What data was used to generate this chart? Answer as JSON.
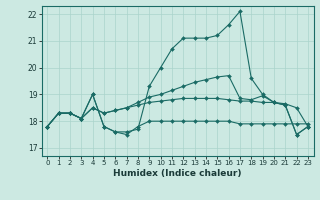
{
  "xlabel": "Humidex (Indice chaleur)",
  "xlim": [
    -0.5,
    23.5
  ],
  "ylim": [
    16.7,
    22.3
  ],
  "yticks": [
    17,
    18,
    19,
    20,
    21,
    22
  ],
  "xticks": [
    0,
    1,
    2,
    3,
    4,
    5,
    6,
    7,
    8,
    9,
    10,
    11,
    12,
    13,
    14,
    15,
    16,
    17,
    18,
    19,
    20,
    21,
    22,
    23
  ],
  "background_color": "#cce9e2",
  "grid_color": "#aad4cc",
  "line_color": "#1a6b65",
  "line1": [
    17.8,
    18.3,
    18.3,
    18.1,
    19.0,
    17.8,
    17.6,
    17.6,
    17.7,
    19.3,
    20.0,
    20.7,
    21.1,
    21.1,
    21.1,
    21.2,
    21.6,
    22.1,
    19.6,
    19.0,
    18.7,
    18.6,
    17.5,
    17.8
  ],
  "line2": [
    17.8,
    18.3,
    18.3,
    18.1,
    19.0,
    17.8,
    17.6,
    17.5,
    17.8,
    18.0,
    18.0,
    18.0,
    18.0,
    18.0,
    18.0,
    18.0,
    18.0,
    17.9,
    17.9,
    17.9,
    17.9,
    17.9,
    17.9,
    17.9
  ],
  "line3": [
    17.8,
    18.3,
    18.3,
    18.1,
    18.5,
    18.3,
    18.4,
    18.5,
    18.6,
    18.7,
    18.75,
    18.8,
    18.85,
    18.85,
    18.85,
    18.85,
    18.8,
    18.75,
    18.75,
    18.7,
    18.7,
    18.65,
    18.5,
    17.8
  ],
  "line4": [
    17.8,
    18.3,
    18.3,
    18.1,
    18.5,
    18.3,
    18.4,
    18.5,
    18.7,
    18.9,
    19.0,
    19.15,
    19.3,
    19.45,
    19.55,
    19.65,
    19.7,
    18.85,
    18.8,
    18.95,
    18.7,
    18.6,
    17.5,
    17.8
  ]
}
